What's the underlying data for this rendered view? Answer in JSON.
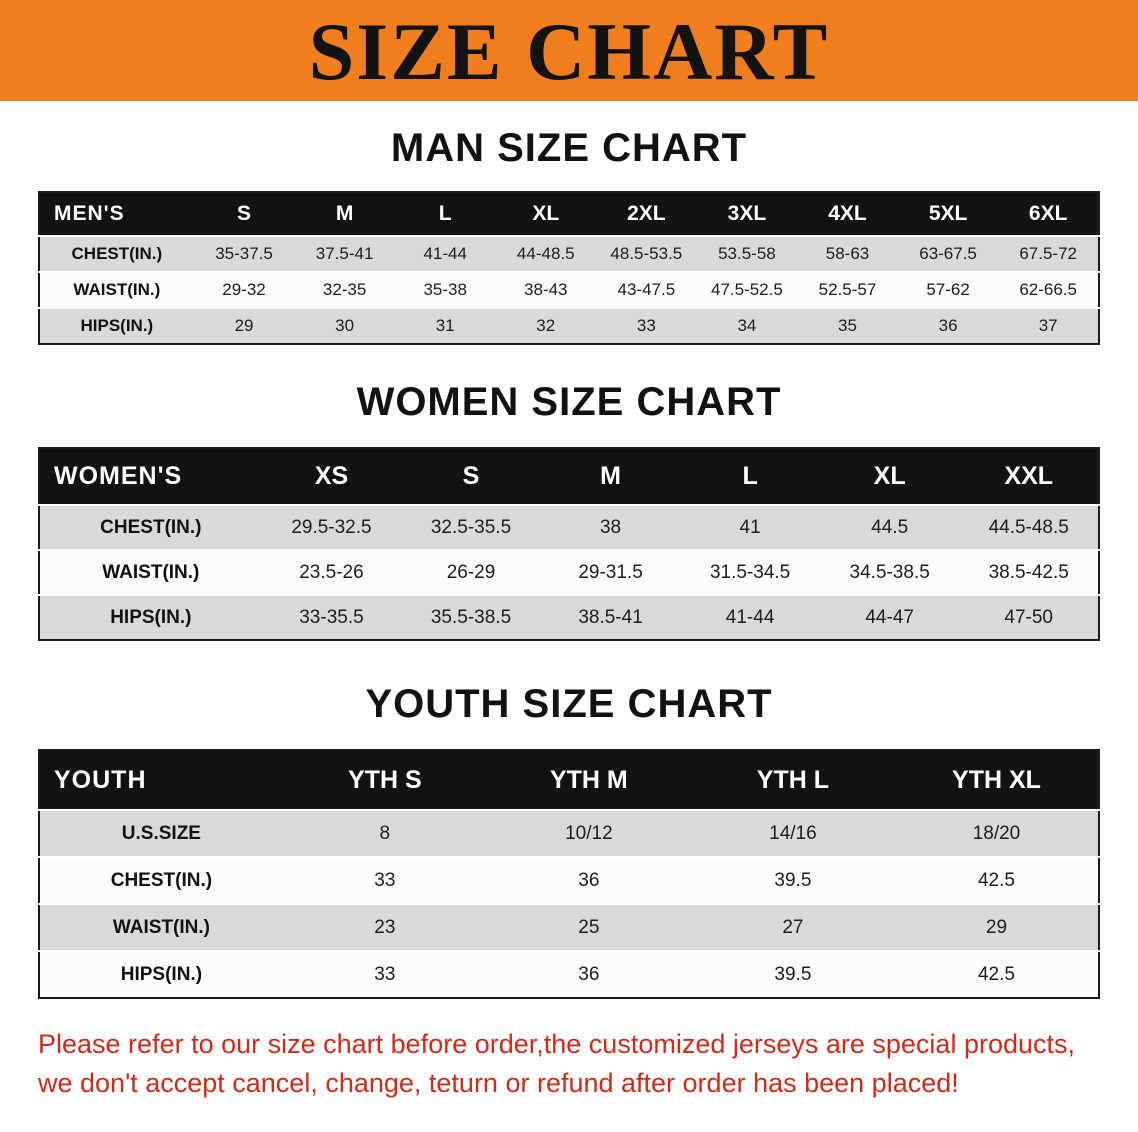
{
  "banner": {
    "title": "SIZE CHART"
  },
  "colors": {
    "banner_bg": "#f07e1c",
    "table_header_bg": "#131313",
    "row_gray": "#d9d9d9",
    "footer_red": "#cf2a1a"
  },
  "men": {
    "heading": "MAN SIZE CHART",
    "header_label": "MEN'S",
    "sizes": [
      "S",
      "M",
      "L",
      "XL",
      "2XL",
      "3XL",
      "4XL",
      "5XL",
      "6XL"
    ],
    "rows": [
      {
        "label": "CHEST(IN.)",
        "values": [
          "35-37.5",
          "37.5-41",
          "41-44",
          "44-48.5",
          "48.5-53.5",
          "53.5-58",
          "58-63",
          "63-67.5",
          "67.5-72"
        ]
      },
      {
        "label": "WAIST(IN.)",
        "values": [
          "29-32",
          "32-35",
          "35-38",
          "38-43",
          "43-47.5",
          "47.5-52.5",
          "52.5-57",
          "57-62",
          "62-66.5"
        ]
      },
      {
        "label": "HIPS(IN.)",
        "values": [
          "29",
          "30",
          "31",
          "32",
          "33",
          "34",
          "35",
          "36",
          "37"
        ]
      }
    ]
  },
  "women": {
    "heading": "WOMEN SIZE CHART",
    "header_label": "WOMEN'S",
    "sizes": [
      "XS",
      "S",
      "M",
      "L",
      "XL",
      "XXL"
    ],
    "rows": [
      {
        "label": "CHEST(IN.)",
        "values": [
          "29.5-32.5",
          "32.5-35.5",
          "38",
          "41",
          "44.5",
          "44.5-48.5"
        ]
      },
      {
        "label": "WAIST(IN.)",
        "values": [
          "23.5-26",
          "26-29",
          "29-31.5",
          "31.5-34.5",
          "34.5-38.5",
          "38.5-42.5"
        ]
      },
      {
        "label": "HIPS(IN.)",
        "values": [
          "33-35.5",
          "35.5-38.5",
          "38.5-41",
          "41-44",
          "44-47",
          "47-50"
        ]
      }
    ]
  },
  "youth": {
    "heading": "YOUTH SIZE CHART",
    "header_label": "YOUTH",
    "sizes": [
      "YTH S",
      "YTH M",
      "YTH L",
      "YTH XL"
    ],
    "rows": [
      {
        "label": "U.S.SIZE",
        "values": [
          "8",
          "10/12",
          "14/16",
          "18/20"
        ]
      },
      {
        "label": "CHEST(IN.)",
        "values": [
          "33",
          "36",
          "39.5",
          "42.5"
        ]
      },
      {
        "label": "WAIST(IN.)",
        "values": [
          "23",
          "25",
          "27",
          "29"
        ]
      },
      {
        "label": "HIPS(IN.)",
        "values": [
          "33",
          "36",
          "39.5",
          "42.5"
        ]
      }
    ]
  },
  "footer": {
    "line1": "Please refer to our size chart before order,the customized jerseys are special products,",
    "line2": "we don't accept cancel, change, teturn or refund after order has been placed!"
  }
}
